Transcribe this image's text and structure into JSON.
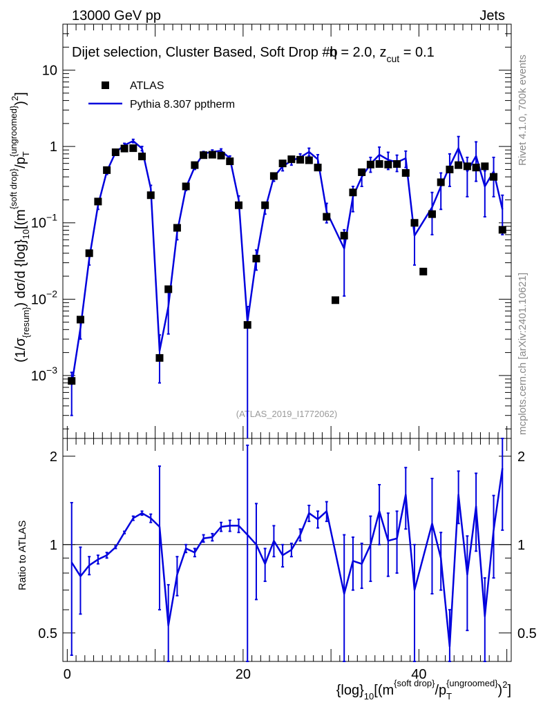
{
  "header": {
    "energy_label": "13000 GeV pp",
    "category_label": "Jets"
  },
  "side_text": {
    "rivet": "Rivet 4.1.0,  700k events",
    "mcplots": "mcplots.cern.ch [arXiv:2401.10621]"
  },
  "chart_data": [
    {
      "type": "scatter",
      "panel": "main",
      "title": "Dijet selection, Cluster Based, Soft Drop #b",
      "title_suffix": "η = 2.0, z",
      "title_sub": "cut",
      "title_tail": " = 0.1",
      "ylabel": "(1/σ_{resum}) dσ/d {log}_{10}[(m^{soft drop}/p_T^{ungroomed})^2]",
      "ylabel_parts": {
        "p1": "(1/σ",
        "s1": "{resum}",
        "p2": ") dσ/d {log}",
        "s2": "10",
        "p3": "[(m",
        "u1": "{soft drop}",
        "p4": "/p",
        "s3": "T",
        "u2": "{ungroomed}",
        "p5": ")",
        "u3": "2",
        "p6": "]"
      },
      "yscale": "log",
      "ylim": [
        0.00015,
        40
      ],
      "xlim": [
        -0.5,
        50.5
      ],
      "y_ticks": [
        {
          "label": "10^-3",
          "base": "10",
          "exp": "−3",
          "v": 0.001
        },
        {
          "label": "10^-2",
          "base": "10",
          "exp": "−2",
          "v": 0.01
        },
        {
          "label": "10^-1",
          "base": "10",
          "exp": "−1",
          "v": 0.1
        },
        {
          "label": "1",
          "base": "1",
          "exp": "",
          "v": 1
        },
        {
          "label": "10",
          "base": "10",
          "exp": "",
          "v": 10
        }
      ],
      "watermark": "(ATLAS_2019_I1772062)",
      "legend_position": "top-left",
      "series": [
        {
          "name": "ATLAS",
          "style": "markers",
          "color": "#000000",
          "x": [
            0.5,
            1.5,
            2.5,
            3.5,
            4.5,
            5.5,
            6.5,
            7.5,
            8.5,
            9.5,
            10.5,
            11.5,
            12.5,
            13.5,
            14.5,
            15.5,
            16.5,
            17.5,
            18.5,
            19.5,
            20.5,
            21.5,
            22.5,
            23.5,
            24.5,
            25.5,
            26.5,
            27.5,
            28.5,
            29.5,
            30.5,
            31.5,
            32.5,
            33.5,
            34.5,
            35.5,
            36.5,
            37.5,
            38.5,
            39.5,
            40.5,
            41.5,
            42.5,
            43.5,
            44.5,
            45.5,
            46.5,
            47.5,
            48.5,
            49.5
          ],
          "y": [
            0.00085,
            0.0054,
            0.04,
            0.19,
            0.49,
            0.84,
            0.94,
            0.95,
            0.74,
            0.23,
            0.0017,
            0.0135,
            0.086,
            0.3,
            0.57,
            0.77,
            0.78,
            0.76,
            0.64,
            0.17,
            0.0046,
            0.034,
            0.17,
            0.41,
            0.6,
            0.68,
            0.67,
            0.66,
            0.53,
            0.12,
            0.0097,
            0.068,
            0.25,
            0.46,
            0.58,
            0.59,
            0.58,
            0.59,
            0.45,
            0.1,
            0.023,
            0.13,
            0.34,
            0.5,
            0.57,
            0.55,
            0.53,
            0.55,
            0.4,
            0.081
          ]
        },
        {
          "name": "Pythia 8.307 pptherm",
          "style": "line",
          "color": "#0000dd",
          "x": [
            0.5,
            1.5,
            2.5,
            3.5,
            4.5,
            5.5,
            6.5,
            7.5,
            8.5,
            9.5,
            10.5,
            11.5,
            12.5,
            13.5,
            14.5,
            15.5,
            16.5,
            17.5,
            18.5,
            19.5,
            20.5,
            21.5,
            22.5,
            23.5,
            24.5,
            25.5,
            26.5,
            27.5,
            28.5,
            29.5,
            31.5,
            32.5,
            33.5,
            34.5,
            35.5,
            36.5,
            37.5,
            38.5,
            39.5,
            41.5,
            42.5,
            43.5,
            44.5,
            45.5,
            46.5,
            47.5,
            48.5,
            49.5
          ],
          "y": [
            0.00075,
            0.0042,
            0.034,
            0.17,
            0.47,
            0.84,
            1.04,
            1.18,
            0.94,
            0.28,
            0.0021,
            0.008,
            0.075,
            0.29,
            0.54,
            0.81,
            0.85,
            0.88,
            0.7,
            0.2,
            0.005,
            0.034,
            0.15,
            0.4,
            0.55,
            0.65,
            0.72,
            0.85,
            0.68,
            0.14,
            0.046,
            0.22,
            0.4,
            0.59,
            0.78,
            0.67,
            0.62,
            0.7,
            0.068,
            0.16,
            0.3,
            0.55,
            0.95,
            0.47,
            0.75,
            0.3,
            0.47,
            0.15
          ],
          "err_lo": [
            0.00045,
            0.0012,
            0.006,
            0.02,
            0.04,
            0.05,
            0.06,
            0.06,
            0.06,
            0.03,
            0.0013,
            0.0045,
            0.015,
            0.025,
            0.04,
            0.05,
            0.05,
            0.05,
            0.05,
            0.025,
            0.005,
            0.01,
            0.02,
            0.05,
            0.07,
            0.08,
            0.08,
            0.1,
            0.1,
            0.04,
            0.035,
            0.08,
            0.1,
            0.13,
            0.2,
            0.17,
            0.15,
            0.17,
            0.04,
            0.09,
            0.15,
            0.25,
            0.4,
            0.25,
            0.4,
            0.18,
            0.25,
            0.08
          ],
          "err_hi": [
            0.00035,
            0.0012,
            0.006,
            0.02,
            0.04,
            0.05,
            0.06,
            0.06,
            0.06,
            0.03,
            0.0013,
            0.0045,
            0.015,
            0.025,
            0.04,
            0.05,
            0.05,
            0.05,
            0.05,
            0.025,
            0.003,
            0.01,
            0.02,
            0.05,
            0.07,
            0.08,
            0.08,
            0.1,
            0.1,
            0.04,
            0.035,
            0.08,
            0.1,
            0.13,
            0.2,
            0.17,
            0.15,
            0.17,
            0.04,
            0.09,
            0.15,
            0.25,
            0.4,
            0.25,
            0.4,
            0.18,
            0.25,
            0.08
          ]
        }
      ]
    },
    {
      "type": "line",
      "panel": "ratio",
      "ylabel": "Ratio to ATLAS",
      "xlabel": "{log}_{10}[(m^{soft drop}/p_T^{ungroomed})^2]",
      "xlabel_parts": {
        "p1": "{log}",
        "s1": "10",
        "p2": "[(m",
        "u1": "{soft drop}",
        "p3": "/p",
        "s2": "T",
        "u2": "{ungroomed}",
        "p4": ")",
        "u3": "2",
        "p5": "]"
      },
      "yscale": "log",
      "ylim": [
        0.4,
        2.3
      ],
      "xlim": [
        -0.5,
        50.5
      ],
      "x_ticks": [
        {
          "label": "0",
          "v": 0
        },
        {
          "label": "20",
          "v": 20
        },
        {
          "label": "40",
          "v": 40
        }
      ],
      "y_ticks": [
        {
          "label": "0.5",
          "v": 0.5
        },
        {
          "label": "1",
          "v": 1
        },
        {
          "label": "2",
          "v": 2
        }
      ],
      "reference_line": 1,
      "series": [
        {
          "name": "Pythia 8.307 pptherm / ATLAS",
          "color": "#0000dd",
          "x": [
            0.5,
            1.5,
            2.5,
            3.5,
            4.5,
            5.5,
            6.5,
            7.5,
            8.5,
            9.5,
            10.5,
            11.5,
            12.5,
            13.5,
            14.5,
            15.5,
            16.5,
            17.5,
            18.5,
            19.5,
            20.5,
            21.5,
            22.5,
            23.5,
            24.5,
            25.5,
            26.5,
            27.5,
            28.5,
            29.5,
            31.5,
            32.5,
            33.5,
            34.5,
            35.5,
            36.5,
            37.5,
            38.5,
            39.5,
            41.5,
            42.5,
            43.5,
            44.5,
            45.5,
            46.5,
            47.5,
            48.5,
            49.5
          ],
          "y": [
            0.87,
            0.78,
            0.85,
            0.89,
            0.92,
            0.98,
            1.1,
            1.23,
            1.28,
            1.23,
            1.15,
            0.53,
            0.79,
            0.97,
            0.94,
            1.05,
            1.06,
            1.15,
            1.16,
            1.16,
            1.08,
            1.0,
            0.86,
            1.03,
            0.92,
            0.96,
            1.08,
            1.28,
            1.22,
            1.3,
            0.68,
            0.88,
            0.86,
            1.0,
            1.3,
            1.03,
            1.05,
            1.48,
            0.7,
            1.18,
            0.9,
            0.45,
            1.48,
            0.79,
            1.35,
            0.57,
            1.12,
            1.82
          ],
          "err_lo": [
            0.45,
            0.2,
            0.06,
            0.03,
            0.02,
            0.01,
            0.01,
            0.02,
            0.02,
            0.04,
            0.55,
            0.2,
            0.12,
            0.03,
            0.03,
            0.03,
            0.03,
            0.04,
            0.05,
            0.06,
            0.8,
            0.35,
            0.11,
            0.12,
            0.08,
            0.05,
            0.05,
            0.08,
            0.08,
            0.1,
            0.4,
            0.18,
            0.15,
            0.25,
            0.3,
            0.25,
            0.25,
            0.35,
            0.3,
            0.5,
            0.2,
            0.15,
            0.3,
            0.28,
            0.4,
            0.2,
            0.35,
            0.7
          ],
          "err_hi": [
            0.52,
            0.2,
            0.06,
            0.03,
            0.02,
            0.01,
            0.01,
            0.02,
            0.02,
            0.04,
            0.7,
            0.2,
            0.12,
            0.03,
            0.03,
            0.03,
            0.03,
            0.04,
            0.05,
            0.06,
            1.1,
            0.38,
            0.11,
            0.13,
            0.08,
            0.05,
            0.05,
            0.08,
            0.08,
            0.1,
            0.4,
            0.18,
            0.15,
            0.25,
            0.3,
            0.25,
            0.25,
            0.35,
            0.3,
            0.5,
            0.2,
            0.15,
            0.3,
            0.28,
            0.4,
            0.2,
            0.35,
            0.7
          ]
        }
      ]
    }
  ]
}
